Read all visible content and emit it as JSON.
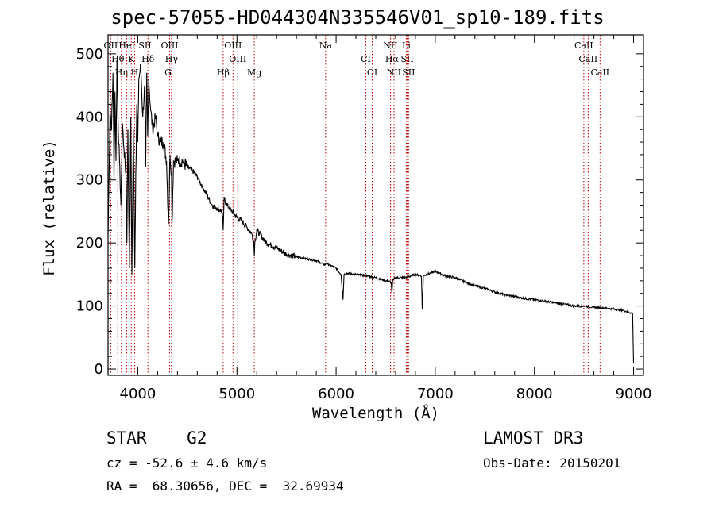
{
  "chart_data": {
    "type": "line",
    "title": "spec-57055-HD044304N335546V01_sp10-189.fits",
    "xlabel": "Wavelength (Å)",
    "ylabel": "Flux (relative)",
    "xlim": [
      3700,
      9100
    ],
    "ylim": [
      -10,
      530
    ],
    "xticks": [
      4000,
      5000,
      6000,
      7000,
      8000,
      9000
    ],
    "yticks": [
      0,
      100,
      200,
      300,
      400,
      500
    ],
    "series": [
      {
        "name": "spectrum",
        "x": [
          3700,
          3720,
          3735,
          3750,
          3760,
          3770,
          3780,
          3790,
          3800,
          3815,
          3830,
          3845,
          3860,
          3880,
          3890,
          3900,
          3915,
          3930,
          3940,
          3955,
          3965,
          3970,
          3980,
          3990,
          4000,
          4010,
          4030,
          4050,
          4070,
          4080,
          4090,
          4100,
          4110,
          4130,
          4150,
          4180,
          4200,
          4230,
          4260,
          4290,
          4310,
          4325,
          4340,
          4345,
          4360,
          4380,
          4400,
          4450,
          4500,
          4550,
          4600,
          4650,
          4700,
          4750,
          4800,
          4850,
          4861,
          4870,
          4900,
          4950,
          5000,
          5050,
          5100,
          5150,
          5170,
          5175,
          5180,
          5200,
          5250,
          5300,
          5400,
          5500,
          5600,
          5700,
          5800,
          5890,
          5900,
          6000,
          6050,
          6070,
          6080,
          6100,
          6200,
          6300,
          6400,
          6500,
          6555,
          6563,
          6570,
          6600,
          6700,
          6800,
          6860,
          6869,
          6880,
          6950,
          7000,
          7100,
          7200,
          7300,
          7400,
          7500,
          7600,
          7700,
          7800,
          7900,
          8000,
          8100,
          8200,
          8300,
          8400,
          8500,
          8600,
          8700,
          8800,
          8900,
          8990,
          9000
        ],
        "y": [
          210,
          410,
          380,
          470,
          300,
          440,
          330,
          490,
          400,
          330,
          260,
          390,
          350,
          310,
          200,
          380,
          160,
          400,
          150,
          380,
          230,
          160,
          310,
          420,
          360,
          460,
          480,
          400,
          450,
          320,
          470,
          370,
          460,
          410,
          380,
          400,
          370,
          360,
          360,
          330,
          230,
          340,
          310,
          230,
          330,
          330,
          330,
          330,
          320,
          315,
          305,
          290,
          275,
          260,
          255,
          250,
          220,
          270,
          260,
          250,
          240,
          235,
          225,
          215,
          200,
          180,
          200,
          220,
          210,
          200,
          192,
          182,
          178,
          175,
          172,
          165,
          168,
          160,
          150,
          110,
          150,
          152,
          150,
          148,
          145,
          140,
          138,
          120,
          140,
          145,
          145,
          150,
          148,
          95,
          148,
          152,
          155,
          148,
          145,
          138,
          132,
          128,
          122,
          118,
          115,
          112,
          110,
          108,
          105,
          103,
          100,
          100,
          98,
          97,
          95,
          93,
          88,
          10
        ]
      }
    ],
    "lines": [
      {
        "label": "OII",
        "wl": 3727
      },
      {
        "label": "Hθ",
        "wl": 3798
      },
      {
        "label": "Hη",
        "wl": 3835
      },
      {
        "label": "HeI",
        "wl": 3889
      },
      {
        "label": "K",
        "wl": 3934
      },
      {
        "label": "H",
        "wl": 3969
      },
      {
        "label": "SII",
        "wl": 4072
      },
      {
        "label": "Hδ",
        "wl": 4102
      },
      {
        "label": "G",
        "wl": 4305
      },
      {
        "label": "OIII",
        "wl": 4321
      },
      {
        "label": "Hγ",
        "wl": 4340
      },
      {
        "label": "Hβ",
        "wl": 4861
      },
      {
        "label": "OIII",
        "wl": 4960
      },
      {
        "label": "OIII",
        "wl": 5008
      },
      {
        "label": "Mg",
        "wl": 5175
      },
      {
        "label": "Na",
        "wl": 5894
      },
      {
        "label": "CI",
        "wl": 6300
      },
      {
        "label": "OI",
        "wl": 6364
      },
      {
        "label": "NII",
        "wl": 6548
      },
      {
        "label": "Hα",
        "wl": 6563
      },
      {
        "label": "NII",
        "wl": 6584
      },
      {
        "label": "Li",
        "wl": 6708
      },
      {
        "label": "SII",
        "wl": 6717
      },
      {
        "label": "SII",
        "wl": 6731
      },
      {
        "label": "CaII",
        "wl": 8498
      },
      {
        "label": "CaII",
        "wl": 8542
      },
      {
        "label": "CaII",
        "wl": 8662
      }
    ],
    "line_color": "#c00000",
    "grid": false
  },
  "info": {
    "class_label": "STAR    G2",
    "cz_label": "cz = -52.6 ± 4.6 km/s",
    "coords_label": "RA =  68.30656, DEC =  32.69934",
    "survey_label": "LAMOST DR3",
    "obs_date_label": "Obs-Date: 20150201"
  }
}
